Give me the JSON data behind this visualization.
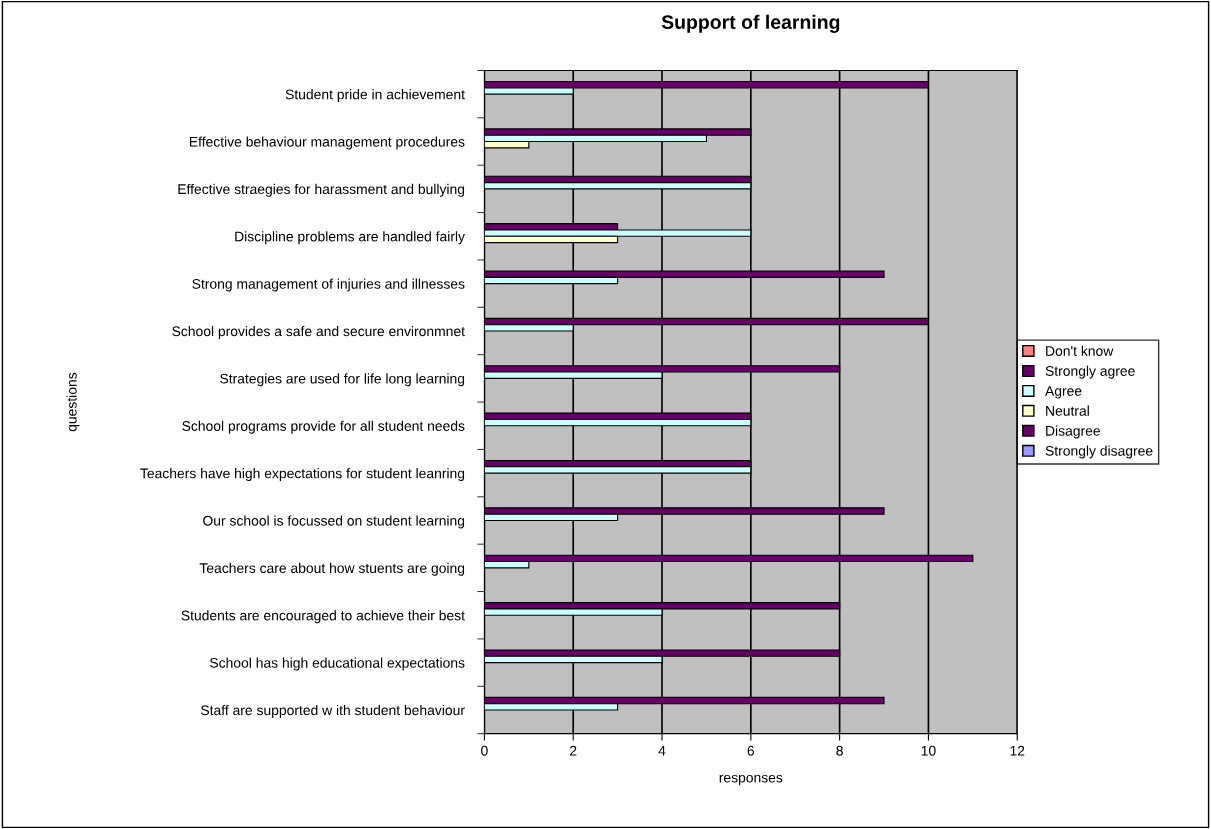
{
  "chart_data": {
    "type": "bar",
    "orientation": "horizontal",
    "title": "Support of learning",
    "xlabel": "responses",
    "ylabel": "questions",
    "categories": [
      "Student pride in achievement",
      "Effective behaviour management procedures",
      "Effective straegies for harassment and bullying",
      "Discipline problems are handled fairly",
      "Strong management of injuries and illnesses",
      "School provides a safe and secure environmnet",
      "Strategies are used for life long learning",
      "School programs provide for all student needs",
      "Teachers have high expectations for student leanring",
      "Our school is focussed on student learning",
      "Teachers care about how stuents are going",
      "Students are encouraged to achieve their best",
      "School has high educational expectations",
      "Staff are supported w ith student behaviour"
    ],
    "series": [
      {
        "name": "Don't know",
        "color": "#ff8080",
        "values": [
          null,
          null,
          null,
          null,
          null,
          null,
          null,
          null,
          null,
          null,
          null,
          null,
          null,
          null
        ]
      },
      {
        "name": "Strongly agree",
        "color": "#660066",
        "values": [
          10,
          6,
          6,
          3,
          9,
          10,
          8,
          6,
          6,
          9,
          11,
          8,
          8,
          9
        ]
      },
      {
        "name": "Agree",
        "color": "#ccffff",
        "values": [
          2,
          5,
          6,
          6,
          3,
          2,
          4,
          6,
          6,
          3,
          1,
          4,
          4,
          3
        ]
      },
      {
        "name": "Neutral",
        "color": "#ffffcc",
        "values": [
          null,
          1,
          null,
          3,
          null,
          null,
          null,
          null,
          null,
          null,
          null,
          null,
          null,
          null
        ]
      },
      {
        "name": "Disagree",
        "color": "#660066",
        "values": [
          null,
          null,
          null,
          null,
          null,
          null,
          null,
          null,
          null,
          null,
          null,
          null,
          null,
          null
        ]
      },
      {
        "name": "Strongly disagree",
        "color": "#9999ff",
        "values": [
          null,
          null,
          null,
          null,
          null,
          null,
          null,
          null,
          null,
          null,
          null,
          null,
          null,
          null
        ]
      }
    ],
    "xlim": [
      0,
      12
    ],
    "xticks": [
      0,
      2,
      4,
      6,
      8,
      10,
      12
    ],
    "grid": "x",
    "legend": "right"
  }
}
